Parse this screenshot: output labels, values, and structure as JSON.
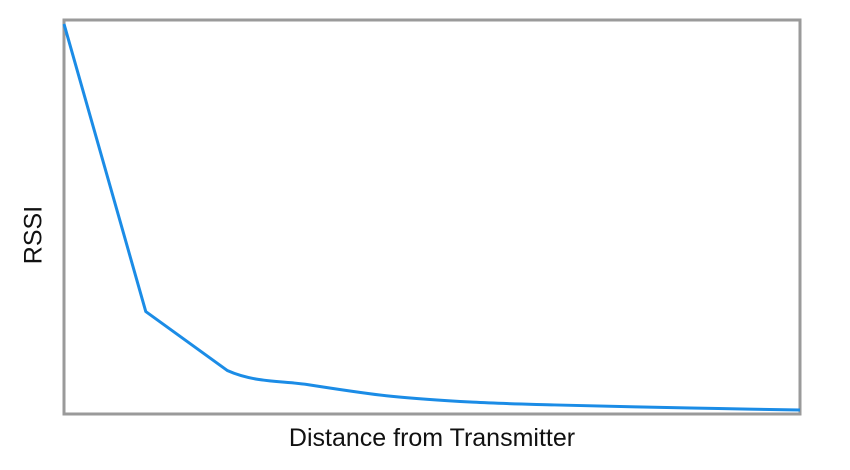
{
  "chart_data": {
    "type": "line",
    "title": "",
    "xlabel": "Distance from Transmitter",
    "ylabel": "RSSI",
    "xlim": [
      0,
      9
    ],
    "ylim": [
      0,
      1
    ],
    "grid": false,
    "ticks_shown": false,
    "x": [
      0,
      1,
      2,
      3,
      4,
      5,
      6,
      7,
      8,
      9
    ],
    "series": [
      {
        "values": [
          0.99,
          0.26,
          0.11,
          0.074,
          0.045,
          0.03,
          0.023,
          0.018,
          0.014,
          0.01
        ],
        "color": "#1b8ce6"
      }
    ],
    "frame_color": "#9a9a9a"
  }
}
